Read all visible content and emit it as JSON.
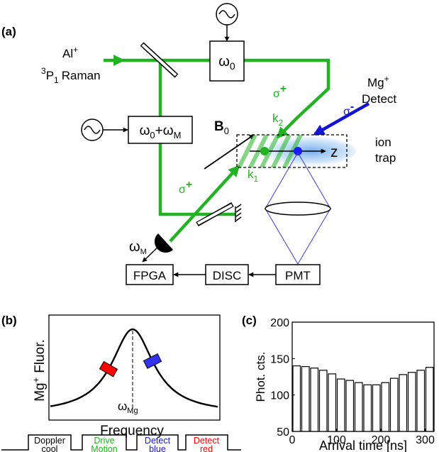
{
  "colors": {
    "green": "#22b322",
    "blue": "#1414d2",
    "blue_ion": "#1a1aff",
    "red": "#ff0000",
    "black": "#000000",
    "glow": "#7fb6f0",
    "thin_blue": "#3a3ad8"
  },
  "panel_a": {
    "label": "(a)",
    "al": {
      "ion": "Al",
      "ion_sup": "+",
      "pre_sup": "3",
      "level": "P",
      "level_sub": "1",
      "beam": "Raman"
    },
    "mg": {
      "ion": "Mg",
      "ion_sup": "+",
      "beam": "Detect"
    },
    "aom1": {
      "omega": "ω",
      "sub": "0"
    },
    "aom2": {
      "omega": "ω",
      "sub0": "0",
      "plus": "+",
      "omega2": "ω",
      "subM": "M"
    },
    "field": {
      "symbol": "B",
      "sub": "0"
    },
    "k1": {
      "k": "k",
      "sub": "1"
    },
    "k2": {
      "k": "k",
      "sub": "2"
    },
    "pol_plus": {
      "sigma": "σ",
      "sign": "+"
    },
    "pol_minus": {
      "sigma": "σ",
      "sign": "-"
    },
    "axis": "z",
    "trap": [
      "ion",
      "trap"
    ],
    "detector": {
      "omega": "ω",
      "sub": "M"
    },
    "boxes": {
      "fpga": "FPGA",
      "disc": "DISC",
      "pmt": "PMT"
    }
  },
  "panel_b": {
    "label": "(b)",
    "ylabel": {
      "ion": "Mg",
      "ion_sup": "+",
      "word": "Fluor."
    },
    "xlabel": "Frequency",
    "center": {
      "omega": "ω",
      "sub": "Mg"
    },
    "sequence": [
      {
        "lines": [
          "Doppler",
          "cool"
        ],
        "color": "#000000"
      },
      {
        "lines": [
          "Drive",
          "Motion"
        ],
        "color": "#22b322"
      },
      {
        "lines": [
          "Detect",
          "blue"
        ],
        "color": "#1414d2"
      },
      {
        "lines": [
          "Detect",
          "red"
        ],
        "color": "#ff0000"
      }
    ]
  },
  "panel_c": {
    "label": "(c)",
    "chart_data": {
      "type": "bar",
      "title": "",
      "xlabel": "Arrival time [ns]",
      "ylabel": "Phot. cts.",
      "xlim": [
        0,
        320
      ],
      "ylim": [
        50,
        200
      ],
      "xticks": [
        0,
        100,
        200,
        300
      ],
      "yticks": [
        50,
        100,
        150,
        200
      ],
      "bin_width_ns": 20,
      "x": [
        0,
        20,
        40,
        60,
        80,
        100,
        120,
        140,
        160,
        180,
        200,
        220,
        240,
        260,
        280,
        300
      ],
      "values": [
        140,
        139,
        137,
        134,
        129,
        122,
        120,
        117,
        114,
        114,
        117,
        123,
        128,
        131,
        134,
        138
      ]
    }
  }
}
